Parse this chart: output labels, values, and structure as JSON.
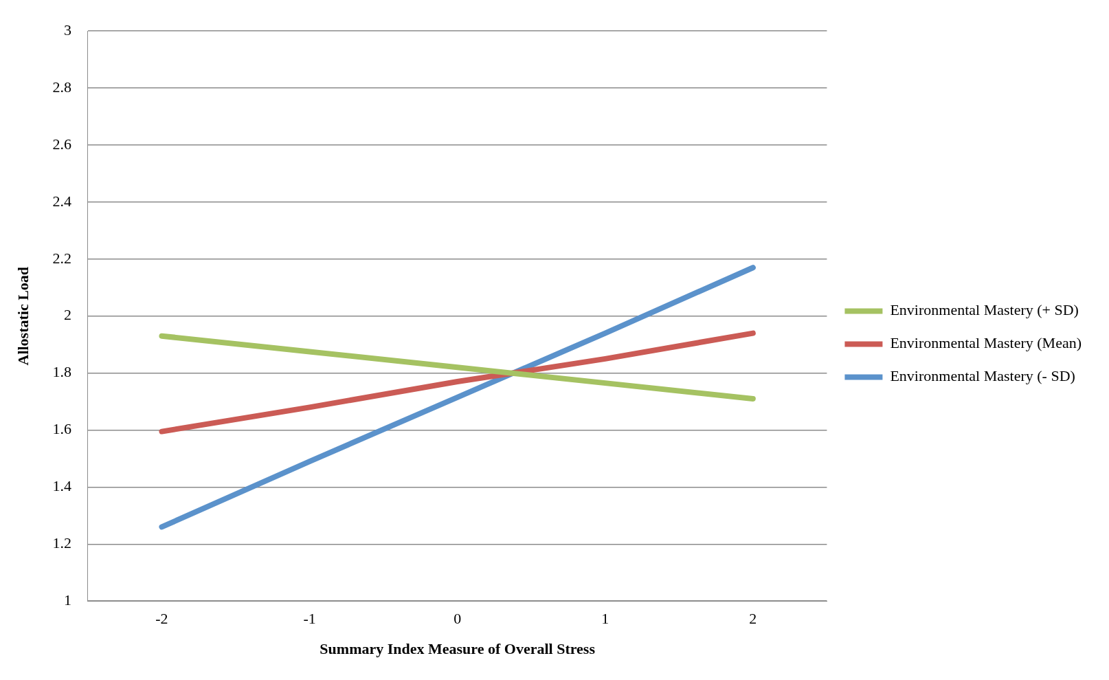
{
  "chart_data": {
    "type": "line",
    "xlabel": "Summary Index Measure of Overall Stress",
    "ylabel": "Allostatic Load",
    "categories": [
      "-2",
      "-1",
      "0",
      "1",
      "2"
    ],
    "series": [
      {
        "name": "Environmental Mastery (+ SD)",
        "color": "#a5c262",
        "values": [
          1.93,
          1.875,
          1.82,
          1.765,
          1.71
        ]
      },
      {
        "name": "Environmental Mastery (Mean)",
        "color": "#cb5b55",
        "values": [
          1.595,
          1.68,
          1.77,
          1.85,
          1.94
        ]
      },
      {
        "name": "Environmental Mastery (- SD)",
        "color": "#5b92cb",
        "values": [
          1.26,
          1.49,
          1.715,
          1.94,
          2.17
        ]
      }
    ],
    "ylim": [
      1,
      3
    ],
    "yticks": [
      1,
      1.2,
      1.4,
      1.6,
      1.8,
      2,
      2.2,
      2.4,
      2.6,
      2.8,
      3
    ],
    "grid": "y",
    "legend": "right",
    "marker": "none",
    "line_style": "solid"
  }
}
